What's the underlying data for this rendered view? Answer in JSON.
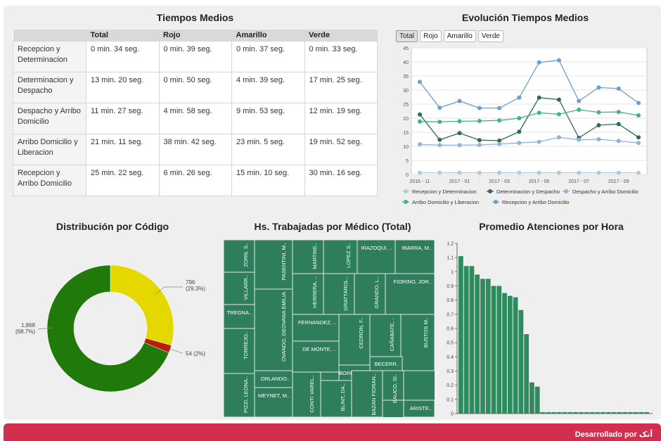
{
  "tiempos": {
    "title": "Tiempos Medios",
    "headers": [
      "",
      "Total",
      "Rojo",
      "Amarillo",
      "Verde"
    ],
    "rows": [
      [
        "Recepcion y Determinacion",
        "0 min. 34 seg.",
        "0 min. 39 seg.",
        "0 min. 37 seg.",
        "0 min. 33 seg."
      ],
      [
        "Determinacion y Despacho",
        "13 min. 20 seg.",
        "0 min. 50 seg.",
        "4 min. 39 seg.",
        "17 min. 25 seg."
      ],
      [
        "Despacho y Arribo Domicilio",
        "11 min. 27 seg.",
        "4 min. 58 seg.",
        "9 min. 53 seg.",
        "12 min. 19 seg."
      ],
      [
        "Arribo Domicilio y Liberacion",
        "21 min. 11 seg.",
        "38 min. 42 seg.",
        "23 min. 5 seg.",
        "19 min. 52 seg."
      ],
      [
        "Recepcion y Arribo Domicilio",
        "25 min. 22 seg.",
        "6 min. 26 seg.",
        "15 min. 10 seg.",
        "30 min. 16 seg."
      ]
    ]
  },
  "evolucion": {
    "title": "Evolución Tiempos Medios",
    "buttons": [
      "Total",
      "Rojo",
      "Amarillo",
      "Verde"
    ]
  },
  "distribucion": {
    "title": "Distribución por Código"
  },
  "horas": {
    "title": "Hs. Trabajadas por Médico (Total)"
  },
  "promedio": {
    "title": "Promedio Atenciones por Hora"
  },
  "footer": {
    "label": "Desarrollado por آتک"
  },
  "colors": {
    "footer": "#d0304e",
    "treemap": "#2e7d5b",
    "bars": "#2e8b5e"
  },
  "chart_data": [
    {
      "id": "evolucion",
      "type": "line",
      "x": [
        "2016-11",
        "2016-12",
        "2017-01",
        "2017-02",
        "2017-03",
        "2017-04",
        "2017-05",
        "2017-06",
        "2017-07",
        "2017-08",
        "2017-09",
        "2017-10"
      ],
      "xticks": [
        "2016 - 11",
        "2017 - 01",
        "2017 - 03",
        "2017 - 05",
        "2017 - 07",
        "2017 - 09"
      ],
      "ylim": [
        0,
        45
      ],
      "yticks": [
        0,
        5,
        10,
        15,
        20,
        25,
        30,
        35,
        40,
        45
      ],
      "legend": "bottom",
      "series": [
        {
          "name": "Recepcion y Determinacion",
          "color": "#a9cce3",
          "values": [
            0.6,
            0.6,
            0.6,
            0.6,
            0.6,
            0.6,
            0.6,
            0.6,
            0.6,
            0.6,
            0.6,
            0.6
          ]
        },
        {
          "name": "Determinacion y Despacho",
          "color": "#2e6b4f",
          "values": [
            21.3,
            12.3,
            14.7,
            12.2,
            12.0,
            15.2,
            27.3,
            26.6,
            13.0,
            17.5,
            17.9,
            13.2
          ]
        },
        {
          "name": "Despacho y Arribo Domicilio",
          "color": "#8fb3d9",
          "values": [
            10.7,
            10.4,
            10.4,
            10.5,
            10.8,
            11.2,
            11.6,
            13.2,
            12.3,
            12.5,
            11.9,
            11.2
          ]
        },
        {
          "name": "Arribo Domicilio y Liberacion",
          "color": "#3cb77f",
          "values": [
            18.8,
            18.7,
            18.9,
            19.0,
            19.2,
            20.0,
            21.9,
            21.4,
            23.0,
            22.1,
            22.2,
            21.0
          ]
        },
        {
          "name": "Recepcion y Arribo Domicilio",
          "color": "#6a9fcf",
          "values": [
            32.9,
            23.7,
            26.1,
            23.6,
            23.6,
            27.3,
            39.8,
            40.6,
            26.1,
            30.9,
            30.5,
            25.4
          ]
        }
      ]
    },
    {
      "id": "distribucion",
      "type": "pie",
      "donut": true,
      "slices": [
        {
          "value": 796,
          "label": "796",
          "pct": "(29.3%)",
          "color": "#e5d800"
        },
        {
          "value": 54,
          "label": "54 (2%)",
          "pct": "",
          "color": "#b81c0c"
        },
        {
          "value": 1868,
          "label": "1,868",
          "pct": "(68.7%)",
          "color": "#1f7a0a"
        }
      ]
    },
    {
      "id": "horas",
      "type": "treemap",
      "labels": [
        "ZORN, S..",
        "PASENTINI, M..",
        "MARTINE..",
        "LOPEZ S..",
        "IRAZOQUI, ..",
        "IBARRA, M..",
        "VILLARR..",
        "HERRERA, ..",
        "GRATTAROL..",
        "GRANDO, L..",
        "FIORINO, JOR..",
        "TREGNA..",
        "OVANDO, GEOVANA EMILIA",
        "FERNANDEZ, ..",
        "CEDRON, F..",
        "CAÑABATE, ..",
        "BUSTOS M..",
        "TORREJO..",
        "DE MONTE, ..",
        "BECERR..",
        "BORRAS, ..",
        "PIZZI, LEONA..",
        "ORLANDO..",
        "CONTI VAREL..",
        "BLINT, DA..",
        "BAZAN FIORAN..",
        "BAUCO, SI..",
        "MEYNET, M..",
        "ARISTE.."
      ]
    },
    {
      "id": "promedio",
      "type": "bar",
      "ylim": [
        0,
        1.2
      ],
      "yticks": [
        0,
        0.1,
        0.2,
        0.3,
        0.4,
        0.5,
        0.6,
        0.7,
        0.8,
        0.9,
        1.0,
        1.1,
        1.2
      ],
      "values": [
        1.11,
        1.04,
        1.04,
        0.98,
        0.95,
        0.95,
        0.9,
        0.9,
        0.85,
        0.83,
        0.82,
        0.73,
        0.56,
        0.22,
        0.19,
        0.01,
        0.01,
        0.01,
        0.01,
        0.01,
        0.01,
        0.01,
        0.01,
        0.01,
        0.01,
        0.01,
        0.01,
        0.01,
        0.01,
        0.01,
        0.01,
        0.01,
        0.01,
        0.01,
        0.01
      ]
    }
  ]
}
